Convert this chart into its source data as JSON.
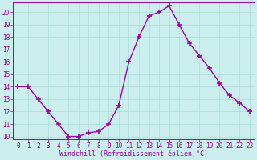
{
  "x": [
    0,
    1,
    2,
    3,
    4,
    5,
    6,
    7,
    8,
    9,
    10,
    11,
    12,
    13,
    14,
    15,
    16,
    17,
    18,
    19,
    20,
    21,
    22,
    23
  ],
  "y": [
    14,
    14,
    13,
    12,
    11,
    10,
    10,
    10.3,
    10.4,
    11,
    12.5,
    16,
    18,
    19.7,
    20,
    20.5,
    19,
    17.5,
    16.5,
    15.5,
    14.3,
    13.3,
    12.7,
    12
  ],
  "line_color": "#9900aa",
  "marker_color": "#9900aa",
  "bg_color": "#cceeee",
  "grid_color": "#aadddd",
  "xlabel": "Windchill (Refroidissement éolien,°C)",
  "xlabel_color": "#9900aa",
  "tick_color": "#9900aa",
  "ylim": [
    9.8,
    20.8
  ],
  "xlim": [
    -0.5,
    23.5
  ],
  "yticks": [
    10,
    11,
    12,
    13,
    14,
    15,
    16,
    17,
    18,
    19,
    20
  ],
  "xticks": [
    0,
    1,
    2,
    3,
    4,
    5,
    6,
    7,
    8,
    9,
    10,
    11,
    12,
    13,
    14,
    15,
    16,
    17,
    18,
    19,
    20,
    21,
    22,
    23
  ],
  "marker_size": 4,
  "line_width": 1.0,
  "title_fontsize": 6,
  "tick_fontsize": 5.5,
  "xlabel_fontsize": 6
}
